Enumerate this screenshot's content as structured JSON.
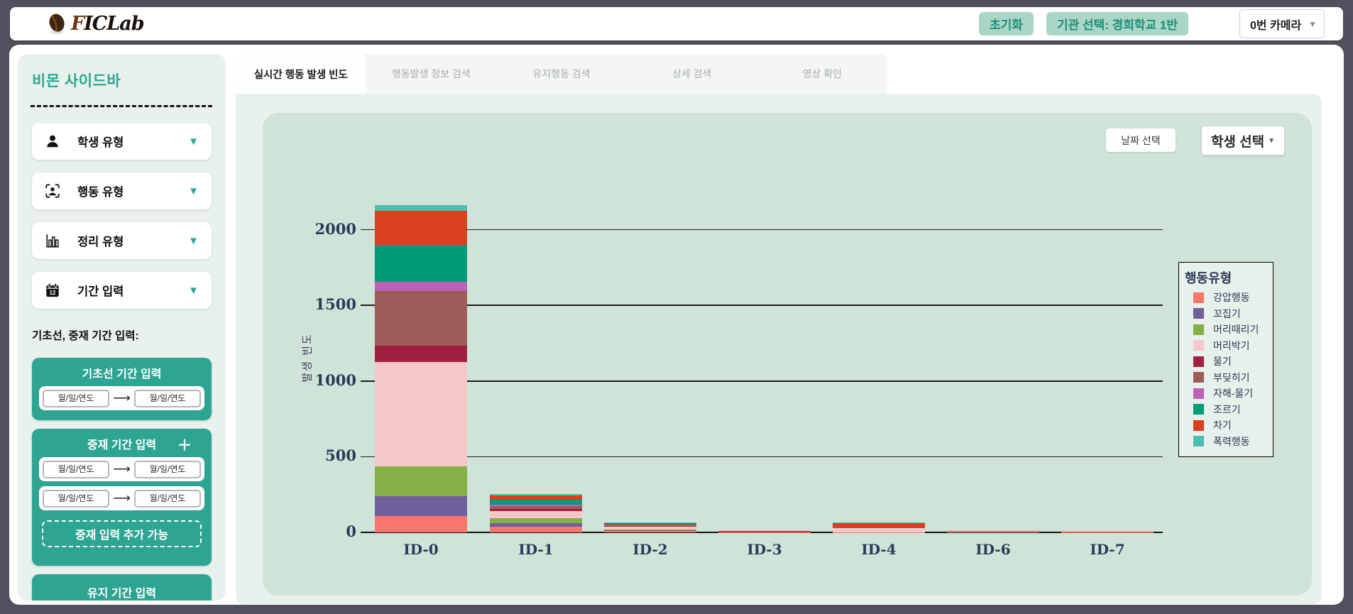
{
  "topbar": {
    "logo_f": "F",
    "logo_rest": "ICLab",
    "reset_button": "초기화",
    "org_button": "기관 선택: 경희학교 1반",
    "camera_select": "0번 카메라",
    "camera_chevron": "▼"
  },
  "sidebar": {
    "title": "비몬 사이드바",
    "accordions": [
      {
        "label": "학생 유형",
        "icon": "person-icon",
        "chevron": "▼"
      },
      {
        "label": "행동 유형",
        "icon": "face-scan-icon",
        "chevron": "▼"
      },
      {
        "label": "정리 유형",
        "icon": "bar-chart-icon",
        "chevron": "▼"
      },
      {
        "label": "기간 입력",
        "icon": "calendar-icon",
        "chevron": "▼"
      }
    ],
    "period_label": "기초선, 중재 기간 입력:",
    "date_placeholder": "월/일/연도",
    "arrow": "⟶",
    "baseline_box": {
      "title": "기초선 기간 입력"
    },
    "intervention_box": {
      "title": "중재 기간 입력",
      "plus": "＋",
      "add_button": "중재 입력 추가 가능"
    },
    "maintenance_box": {
      "title": "유지 기간 입력"
    }
  },
  "tabs": [
    {
      "label": "실시간 행동 발생 빈도",
      "active": true
    },
    {
      "label": "행동발생 정보 검색",
      "active": false
    },
    {
      "label": "유지행동 검색",
      "active": false
    },
    {
      "label": "상세 검색",
      "active": false
    },
    {
      "label": "영상 확인",
      "active": false
    }
  ],
  "chart_panel": {
    "date_button": "날짜 선택",
    "student_button": "학생 선택",
    "student_chevron": "▼"
  },
  "chart_data": {
    "type": "bar",
    "stacked": true,
    "title": "",
    "xlabel": "",
    "ylabel": "발생 빈도",
    "legend_title": "행동유형",
    "legend_position": "right",
    "grid": true,
    "ylim": [
      0,
      2250
    ],
    "yticks": [
      0,
      500,
      1000,
      1500,
      2000
    ],
    "categories": [
      "ID-0",
      "ID-1",
      "ID-2",
      "ID-3",
      "ID-4",
      "ID-6",
      "ID-7"
    ],
    "series": [
      {
        "name": "강압행동",
        "color": "#F8766D",
        "values": [
          110,
          39,
          9,
          1,
          2,
          0,
          1
        ]
      },
      {
        "name": "꼬집기",
        "color": "#6F5F9C",
        "values": [
          130,
          23,
          3,
          5,
          0,
          0,
          0
        ]
      },
      {
        "name": "머리때리기",
        "color": "#84B045",
        "values": [
          195,
          33,
          5,
          0,
          0,
          0,
          0
        ]
      },
      {
        "name": "머리박기",
        "color": "#F7C8CA",
        "values": [
          690,
          47,
          19,
          0,
          25,
          9,
          2
        ]
      },
      {
        "name": "물기",
        "color": "#A02040",
        "values": [
          110,
          15,
          5,
          1,
          4,
          0,
          0
        ]
      },
      {
        "name": "부딪히기",
        "color": "#9D5C57",
        "values": [
          360,
          16,
          4,
          0,
          0,
          0,
          0
        ]
      },
      {
        "name": "자해-물기",
        "color": "#BC60B8",
        "values": [
          62,
          11,
          1,
          0,
          0,
          0,
          0
        ]
      },
      {
        "name": "조르기",
        "color": "#009B77",
        "values": [
          245,
          34,
          7,
          0,
          2,
          0,
          0
        ]
      },
      {
        "name": "차기",
        "color": "#D8401E",
        "values": [
          223,
          27,
          9,
          1,
          32,
          1,
          1
        ]
      },
      {
        "name": "폭력행동",
        "color": "#4BBFAD",
        "values": [
          40,
          9,
          2,
          0,
          2,
          0,
          0
        ]
      }
    ]
  }
}
